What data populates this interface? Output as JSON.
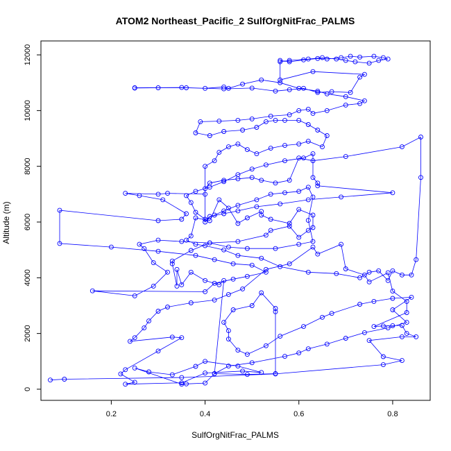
{
  "chart_data": {
    "type": "line",
    "title": "ATOM2 Northeast_Pacific_2 SulfOrgNitFrac_PALMS",
    "xlabel": "SulfOrgNitFrac_PALMS",
    "ylabel": "Altitude (m)",
    "xlim": [
      0.05,
      0.88
    ],
    "ylim": [
      -400,
      12500
    ],
    "xticks": [
      0.2,
      0.4,
      0.6,
      0.8
    ],
    "yticks": [
      0,
      2000,
      4000,
      6000,
      8000,
      10000,
      12000
    ],
    "xtick_labels": [
      "0.2",
      "0.4",
      "0.6",
      "0.8"
    ],
    "ytick_labels": [
      "0",
      "2000",
      "4000",
      "6000",
      "8000",
      "10000",
      "12000"
    ],
    "grid": false,
    "legend": "none",
    "series": [
      {
        "color": "#0000ff",
        "marker": "open-circle",
        "points": [
          [
            0.07,
            330
          ],
          [
            0.1,
            360
          ],
          [
            0.35,
            420
          ],
          [
            0.55,
            550
          ],
          [
            0.78,
            880
          ],
          [
            0.82,
            1030
          ],
          [
            0.78,
            1170
          ],
          [
            0.75,
            1750
          ],
          [
            0.82,
            1880
          ],
          [
            0.85,
            1880
          ],
          [
            0.83,
            2000
          ],
          [
            0.82,
            2290
          ],
          [
            0.8,
            2280
          ],
          [
            0.78,
            2270
          ],
          [
            0.76,
            2250
          ],
          [
            0.83,
            2750
          ],
          [
            0.83,
            3150
          ],
          [
            0.8,
            3520
          ],
          [
            0.79,
            4180
          ],
          [
            0.75,
            3850
          ],
          [
            0.74,
            4100
          ],
          [
            0.7,
            4320
          ],
          [
            0.69,
            5200
          ],
          [
            0.64,
            4850
          ],
          [
            0.63,
            5100
          ],
          [
            0.58,
            4500
          ],
          [
            0.53,
            4300
          ],
          [
            0.48,
            3600
          ],
          [
            0.45,
            3400
          ],
          [
            0.42,
            3200
          ],
          [
            0.37,
            3100
          ],
          [
            0.32,
            2950
          ],
          [
            0.3,
            2800
          ],
          [
            0.28,
            2450
          ],
          [
            0.27,
            2200
          ],
          [
            0.25,
            1850
          ],
          [
            0.24,
            1720
          ],
          [
            0.33,
            1870
          ],
          [
            0.35,
            1850
          ],
          [
            0.3,
            1370
          ],
          [
            0.23,
            700
          ],
          [
            0.22,
            550
          ],
          [
            0.25,
            250
          ],
          [
            0.23,
            180
          ],
          [
            0.35,
            230
          ],
          [
            0.4,
            580
          ],
          [
            0.48,
            650
          ],
          [
            0.52,
            600
          ],
          [
            0.47,
            830
          ],
          [
            0.4,
            1000
          ],
          [
            0.38,
            820
          ],
          [
            0.33,
            520
          ],
          [
            0.28,
            620
          ],
          [
            0.25,
            760
          ],
          [
            0.35,
            180
          ],
          [
            0.36,
            190
          ],
          [
            0.4,
            220
          ],
          [
            0.42,
            560
          ],
          [
            0.49,
            530
          ],
          [
            0.55,
            560
          ],
          [
            0.55,
            2780
          ],
          [
            0.55,
            2900
          ],
          [
            0.52,
            3460
          ],
          [
            0.5,
            3000
          ],
          [
            0.46,
            2850
          ],
          [
            0.44,
            2400
          ],
          [
            0.45,
            2100
          ],
          [
            0.45,
            1800
          ],
          [
            0.47,
            1400
          ],
          [
            0.49,
            1250
          ],
          [
            0.53,
            1560
          ],
          [
            0.56,
            1900
          ],
          [
            0.61,
            2250
          ],
          [
            0.65,
            2580
          ],
          [
            0.67,
            2720
          ],
          [
            0.73,
            3050
          ],
          [
            0.76,
            3150
          ],
          [
            0.8,
            3260
          ],
          [
            0.84,
            3300
          ],
          [
            0.8,
            2850
          ],
          [
            0.83,
            2400
          ],
          [
            0.79,
            2200
          ],
          [
            0.74,
            2030
          ],
          [
            0.7,
            1830
          ],
          [
            0.66,
            1620
          ],
          [
            0.62,
            1450
          ],
          [
            0.6,
            1300
          ],
          [
            0.57,
            1180
          ],
          [
            0.5,
            950
          ],
          [
            0.45,
            830
          ],
          [
            0.42,
            560
          ],
          [
            0.44,
            3900
          ],
          [
            0.43,
            3750
          ],
          [
            0.4,
            3900
          ],
          [
            0.37,
            4200
          ],
          [
            0.35,
            3750
          ],
          [
            0.34,
            4300
          ],
          [
            0.34,
            3700
          ],
          [
            0.33,
            4500
          ],
          [
            0.33,
            4600
          ],
          [
            0.37,
            4980
          ],
          [
            0.41,
            5250
          ],
          [
            0.47,
            5300
          ],
          [
            0.53,
            5530
          ],
          [
            0.54,
            5700
          ],
          [
            0.58,
            5850
          ],
          [
            0.6,
            5450
          ],
          [
            0.62,
            5700
          ],
          [
            0.63,
            5800
          ],
          [
            0.63,
            6250
          ],
          [
            0.6,
            6450
          ],
          [
            0.58,
            5950
          ],
          [
            0.54,
            6100
          ],
          [
            0.52,
            6250
          ],
          [
            0.52,
            6380
          ],
          [
            0.49,
            6150
          ],
          [
            0.47,
            5950
          ],
          [
            0.45,
            6500
          ],
          [
            0.43,
            6800
          ],
          [
            0.41,
            6050
          ],
          [
            0.38,
            6150
          ],
          [
            0.37,
            5500
          ],
          [
            0.36,
            5350
          ],
          [
            0.38,
            5200
          ],
          [
            0.4,
            5150
          ],
          [
            0.44,
            5000
          ],
          [
            0.47,
            4800
          ],
          [
            0.52,
            4700
          ],
          [
            0.56,
            4400
          ],
          [
            0.62,
            4200
          ],
          [
            0.68,
            4150
          ],
          [
            0.73,
            4000
          ],
          [
            0.75,
            4200
          ],
          [
            0.77,
            4250
          ],
          [
            0.79,
            3900
          ],
          [
            0.8,
            4250
          ],
          [
            0.82,
            4100
          ],
          [
            0.84,
            4100
          ],
          [
            0.85,
            4650
          ],
          [
            0.86,
            7600
          ],
          [
            0.86,
            9050
          ],
          [
            0.82,
            8700
          ],
          [
            0.7,
            8350
          ],
          [
            0.63,
            8200
          ],
          [
            0.6,
            8300
          ],
          [
            0.58,
            7500
          ],
          [
            0.55,
            7400
          ],
          [
            0.52,
            7500
          ],
          [
            0.5,
            7600
          ],
          [
            0.47,
            7550
          ],
          [
            0.44,
            7500
          ],
          [
            0.41,
            7400
          ],
          [
            0.4,
            7200
          ],
          [
            0.4,
            7000
          ],
          [
            0.32,
            7030
          ],
          [
            0.3,
            7000
          ],
          [
            0.23,
            7030
          ],
          [
            0.26,
            6950
          ],
          [
            0.31,
            6800
          ],
          [
            0.36,
            6300
          ],
          [
            0.35,
            6100
          ],
          [
            0.3,
            6050
          ],
          [
            0.09,
            6420
          ],
          [
            0.09,
            5230
          ],
          [
            0.2,
            5100
          ],
          [
            0.3,
            4950
          ],
          [
            0.38,
            4800
          ],
          [
            0.42,
            4650
          ],
          [
            0.46,
            4500
          ],
          [
            0.5,
            4450
          ],
          [
            0.53,
            4200
          ],
          [
            0.49,
            4050
          ],
          [
            0.46,
            3950
          ],
          [
            0.42,
            3800
          ],
          [
            0.4,
            3500
          ],
          [
            0.16,
            3530
          ],
          [
            0.25,
            3350
          ],
          [
            0.29,
            3700
          ],
          [
            0.32,
            4200
          ],
          [
            0.29,
            4540
          ],
          [
            0.27,
            5050
          ],
          [
            0.26,
            5200
          ],
          [
            0.3,
            5350
          ],
          [
            0.35,
            5300
          ],
          [
            0.41,
            5250
          ],
          [
            0.45,
            5100
          ],
          [
            0.49,
            5050
          ],
          [
            0.55,
            5050
          ],
          [
            0.6,
            5200
          ],
          [
            0.63,
            5300
          ],
          [
            0.62,
            6060
          ],
          [
            0.63,
            6900
          ],
          [
            0.62,
            7250
          ],
          [
            0.6,
            7100
          ],
          [
            0.57,
            7050
          ],
          [
            0.54,
            7000
          ],
          [
            0.51,
            6800
          ],
          [
            0.47,
            6600
          ],
          [
            0.44,
            6400
          ],
          [
            0.42,
            6250
          ],
          [
            0.4,
            6100
          ],
          [
            0.38,
            6350
          ],
          [
            0.37,
            6700
          ],
          [
            0.36,
            6950
          ],
          [
            0.38,
            7100
          ],
          [
            0.41,
            7250
          ],
          [
            0.44,
            7450
          ],
          [
            0.47,
            7700
          ],
          [
            0.5,
            7900
          ],
          [
            0.53,
            8050
          ],
          [
            0.57,
            8200
          ],
          [
            0.61,
            8300
          ],
          [
            0.63,
            8450
          ],
          [
            0.63,
            7600
          ],
          [
            0.64,
            7400
          ],
          [
            0.64,
            7300
          ],
          [
            0.8,
            7050
          ],
          [
            0.69,
            6900
          ],
          [
            0.62,
            6800
          ],
          [
            0.56,
            6650
          ],
          [
            0.51,
            6550
          ],
          [
            0.47,
            6400
          ],
          [
            0.44,
            6300
          ],
          [
            0.41,
            6200
          ],
          [
            0.4,
            6000
          ],
          [
            0.4,
            8000
          ],
          [
            0.42,
            8200
          ],
          [
            0.43,
            8500
          ],
          [
            0.45,
            8700
          ],
          [
            0.47,
            8800
          ],
          [
            0.49,
            8600
          ],
          [
            0.51,
            8450
          ],
          [
            0.54,
            8650
          ],
          [
            0.57,
            8750
          ],
          [
            0.6,
            8800
          ],
          [
            0.62,
            8900
          ],
          [
            0.65,
            8700
          ],
          [
            0.66,
            9100
          ],
          [
            0.64,
            9300
          ],
          [
            0.62,
            9500
          ],
          [
            0.6,
            9650
          ],
          [
            0.57,
            9650
          ],
          [
            0.55,
            9650
          ],
          [
            0.53,
            9600
          ],
          [
            0.51,
            9400
          ],
          [
            0.48,
            9300
          ],
          [
            0.44,
            9250
          ],
          [
            0.41,
            9100
          ],
          [
            0.38,
            9200
          ],
          [
            0.39,
            9600
          ],
          [
            0.43,
            9620
          ],
          [
            0.47,
            9650
          ],
          [
            0.5,
            9700
          ],
          [
            0.54,
            9800
          ],
          [
            0.58,
            9850
          ],
          [
            0.6,
            10000
          ],
          [
            0.62,
            10050
          ],
          [
            0.63,
            9900
          ],
          [
            0.66,
            10000
          ],
          [
            0.7,
            10200
          ],
          [
            0.73,
            10250
          ],
          [
            0.74,
            10350
          ],
          [
            0.7,
            10500
          ],
          [
            0.66,
            10600
          ],
          [
            0.64,
            10700
          ],
          [
            0.6,
            10800
          ],
          [
            0.56,
            11000
          ],
          [
            0.52,
            11100
          ],
          [
            0.48,
            10950
          ],
          [
            0.45,
            10800
          ],
          [
            0.44,
            10850
          ],
          [
            0.4,
            10800
          ],
          [
            0.36,
            10820
          ],
          [
            0.3,
            10820
          ],
          [
            0.25,
            10810
          ],
          [
            0.25,
            10820
          ],
          [
            0.35,
            10830
          ],
          [
            0.44,
            10780
          ],
          [
            0.5,
            10810
          ],
          [
            0.55,
            10700
          ],
          [
            0.58,
            10750
          ],
          [
            0.61,
            10800
          ],
          [
            0.64,
            10650
          ],
          [
            0.67,
            10680
          ],
          [
            0.71,
            10650
          ],
          [
            0.73,
            11200
          ],
          [
            0.74,
            11300
          ],
          [
            0.63,
            11400
          ],
          [
            0.56,
            11100
          ],
          [
            0.56,
            11750
          ],
          [
            0.58,
            11800
          ],
          [
            0.62,
            11850
          ],
          [
            0.65,
            11900
          ],
          [
            0.68,
            11850
          ],
          [
            0.7,
            11800
          ],
          [
            0.72,
            11750
          ],
          [
            0.75,
            11700
          ],
          [
            0.77,
            11800
          ],
          [
            0.79,
            11850
          ],
          [
            0.78,
            11900
          ],
          [
            0.76,
            11950
          ],
          [
            0.73,
            11920
          ],
          [
            0.71,
            11950
          ],
          [
            0.69,
            11900
          ],
          [
            0.66,
            11850
          ],
          [
            0.64,
            11870
          ],
          [
            0.61,
            11820
          ],
          [
            0.58,
            11750
          ],
          [
            0.56,
            11800
          ]
        ]
      }
    ]
  }
}
